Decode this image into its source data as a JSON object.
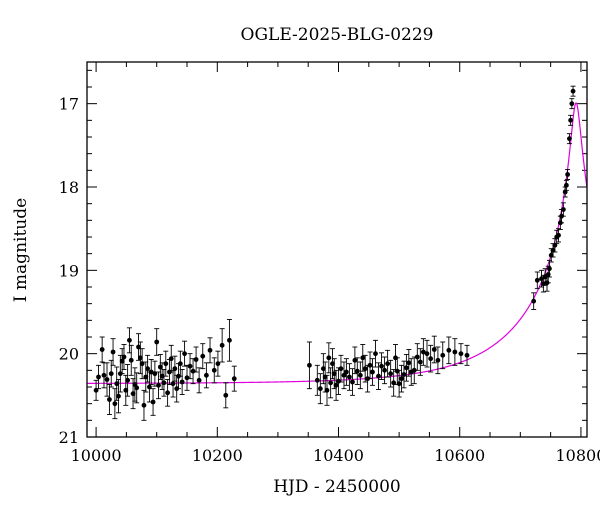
{
  "chart_data": {
    "type": "scatter",
    "title": "OGLE-2025-BLG-0229",
    "xlabel": "HJD - 2450000",
    "ylabel": "I magnitude",
    "xlim": [
      9985,
      10810
    ],
    "ylim": [
      21.0,
      16.5
    ],
    "y_inverted": true,
    "x_ticks": [
      10000,
      10200,
      10400,
      10600,
      10800
    ],
    "y_ticks": [
      17,
      18,
      19,
      20,
      21
    ],
    "grid": false,
    "legend": "none",
    "colors": {
      "data": "#000000",
      "model": "#e000e0"
    },
    "series": [
      {
        "kind": "points_with_errorbars",
        "points": [
          {
            "x": 10000,
            "y": 20.44,
            "e": 0.12
          },
          {
            "x": 10004,
            "y": 20.28,
            "e": 0.14
          },
          {
            "x": 10010,
            "y": 19.95,
            "e": 0.15
          },
          {
            "x": 10013,
            "y": 20.26,
            "e": 0.15
          },
          {
            "x": 10018,
            "y": 20.31,
            "e": 0.2
          },
          {
            "x": 10022,
            "y": 20.55,
            "e": 0.18
          },
          {
            "x": 10025,
            "y": 20.24,
            "e": 0.16
          },
          {
            "x": 10028,
            "y": 19.98,
            "e": 0.16
          },
          {
            "x": 10031,
            "y": 20.6,
            "e": 0.18
          },
          {
            "x": 10034,
            "y": 20.36,
            "e": 0.2
          },
          {
            "x": 10037,
            "y": 20.51,
            "e": 0.2
          },
          {
            "x": 10040,
            "y": 20.24,
            "e": 0.22
          },
          {
            "x": 10043,
            "y": 20.09,
            "e": 0.15
          },
          {
            "x": 10046,
            "y": 20.04,
            "e": 0.15
          },
          {
            "x": 10049,
            "y": 20.44,
            "e": 0.18
          },
          {
            "x": 10052,
            "y": 20.32,
            "e": 0.19
          },
          {
            "x": 10055,
            "y": 19.84,
            "e": 0.15
          },
          {
            "x": 10058,
            "y": 20.08,
            "e": 0.18
          },
          {
            "x": 10061,
            "y": 20.48,
            "e": 0.18
          },
          {
            "x": 10064,
            "y": 20.37,
            "e": 0.2
          },
          {
            "x": 10067,
            "y": 20.41,
            "e": 0.18
          },
          {
            "x": 10070,
            "y": 19.92,
            "e": 0.16
          },
          {
            "x": 10073,
            "y": 20.05,
            "e": 0.19
          },
          {
            "x": 10076,
            "y": 20.12,
            "e": 0.18
          },
          {
            "x": 10079,
            "y": 20.62,
            "e": 0.18
          },
          {
            "x": 10082,
            "y": 20.28,
            "e": 0.18
          },
          {
            "x": 10085,
            "y": 20.18,
            "e": 0.16
          },
          {
            "x": 10088,
            "y": 20.4,
            "e": 0.18
          },
          {
            "x": 10091,
            "y": 20.22,
            "e": 0.15
          },
          {
            "x": 10094,
            "y": 20.58,
            "e": 0.16
          },
          {
            "x": 10097,
            "y": 20.24,
            "e": 0.15
          },
          {
            "x": 10100,
            "y": 19.86,
            "e": 0.16
          },
          {
            "x": 10103,
            "y": 20.38,
            "e": 0.16
          },
          {
            "x": 10106,
            "y": 20.16,
            "e": 0.15
          },
          {
            "x": 10109,
            "y": 20.27,
            "e": 0.16
          },
          {
            "x": 10112,
            "y": 20.35,
            "e": 0.16
          },
          {
            "x": 10115,
            "y": 20.12,
            "e": 0.15
          },
          {
            "x": 10118,
            "y": 20.47,
            "e": 0.16
          },
          {
            "x": 10121,
            "y": 20.22,
            "e": 0.15
          },
          {
            "x": 10124,
            "y": 20.06,
            "e": 0.16
          },
          {
            "x": 10127,
            "y": 20.36,
            "e": 0.16
          },
          {
            "x": 10130,
            "y": 20.18,
            "e": 0.15
          },
          {
            "x": 10133,
            "y": 20.42,
            "e": 0.16
          },
          {
            "x": 10136,
            "y": 20.27,
            "e": 0.15
          },
          {
            "x": 10139,
            "y": 20.12,
            "e": 0.15
          },
          {
            "x": 10142,
            "y": 20.34,
            "e": 0.15
          },
          {
            "x": 10146,
            "y": 20.0,
            "e": 0.15
          },
          {
            "x": 10150,
            "y": 20.29,
            "e": 0.15
          },
          {
            "x": 10155,
            "y": 20.15,
            "e": 0.15
          },
          {
            "x": 10160,
            "y": 20.21,
            "e": 0.15
          },
          {
            "x": 10165,
            "y": 20.07,
            "e": 0.15
          },
          {
            "x": 10170,
            "y": 20.32,
            "e": 0.15
          },
          {
            "x": 10176,
            "y": 20.03,
            "e": 0.15
          },
          {
            "x": 10182,
            "y": 20.26,
            "e": 0.15
          },
          {
            "x": 10188,
            "y": 19.96,
            "e": 0.15
          },
          {
            "x": 10195,
            "y": 20.2,
            "e": 0.15
          },
          {
            "x": 10201,
            "y": 20.12,
            "e": 0.15
          },
          {
            "x": 10208,
            "y": 19.9,
            "e": 0.2
          },
          {
            "x": 10214,
            "y": 20.5,
            "e": 0.15
          },
          {
            "x": 10220,
            "y": 19.84,
            "e": 0.25
          },
          {
            "x": 10228,
            "y": 20.3,
            "e": 0.15
          },
          {
            "x": 10352,
            "y": 20.14,
            "e": 0.28
          },
          {
            "x": 10365,
            "y": 20.32,
            "e": 0.18
          },
          {
            "x": 10370,
            "y": 20.42,
            "e": 0.18
          },
          {
            "x": 10375,
            "y": 20.18,
            "e": 0.18
          },
          {
            "x": 10378,
            "y": 20.28,
            "e": 0.18
          },
          {
            "x": 10381,
            "y": 20.44,
            "e": 0.18
          },
          {
            "x": 10384,
            "y": 20.05,
            "e": 0.18
          },
          {
            "x": 10387,
            "y": 20.35,
            "e": 0.18
          },
          {
            "x": 10390,
            "y": 20.12,
            "e": 0.18
          },
          {
            "x": 10393,
            "y": 20.24,
            "e": 0.18
          },
          {
            "x": 10396,
            "y": 20.38,
            "e": 0.18
          },
          {
            "x": 10400,
            "y": 20.33,
            "e": 0.16
          },
          {
            "x": 10404,
            "y": 20.18,
            "e": 0.16
          },
          {
            "x": 10409,
            "y": 20.26,
            "e": 0.16
          },
          {
            "x": 10413,
            "y": 20.22,
            "e": 0.16
          },
          {
            "x": 10418,
            "y": 20.28,
            "e": 0.16
          },
          {
            "x": 10423,
            "y": 20.34,
            "e": 0.16
          },
          {
            "x": 10427,
            "y": 20.08,
            "e": 0.16
          },
          {
            "x": 10431,
            "y": 20.21,
            "e": 0.16
          },
          {
            "x": 10436,
            "y": 20.26,
            "e": 0.16
          },
          {
            "x": 10440,
            "y": 20.05,
            "e": 0.16
          },
          {
            "x": 10444,
            "y": 20.18,
            "e": 0.16
          },
          {
            "x": 10448,
            "y": 20.3,
            "e": 0.16
          },
          {
            "x": 10452,
            "y": 20.14,
            "e": 0.16
          },
          {
            "x": 10456,
            "y": 20.22,
            "e": 0.16
          },
          {
            "x": 10461,
            "y": 20.0,
            "e": 0.16
          },
          {
            "x": 10466,
            "y": 20.27,
            "e": 0.16
          },
          {
            "x": 10471,
            "y": 20.15,
            "e": 0.16
          },
          {
            "x": 10476,
            "y": 20.2,
            "e": 0.16
          },
          {
            "x": 10481,
            "y": 20.12,
            "e": 0.16
          },
          {
            "x": 10486,
            "y": 20.24,
            "e": 0.16
          },
          {
            "x": 10491,
            "y": 20.35,
            "e": 0.16
          },
          {
            "x": 10494,
            "y": 20.05,
            "e": 0.16
          },
          {
            "x": 10497,
            "y": 20.21,
            "e": 0.16
          },
          {
            "x": 10500,
            "y": 20.36,
            "e": 0.16
          },
          {
            "x": 10504,
            "y": 20.3,
            "e": 0.16
          },
          {
            "x": 10508,
            "y": 20.25,
            "e": 0.16
          },
          {
            "x": 10512,
            "y": 20.17,
            "e": 0.16
          },
          {
            "x": 10516,
            "y": 20.11,
            "e": 0.16
          },
          {
            "x": 10520,
            "y": 20.22,
            "e": 0.16
          },
          {
            "x": 10525,
            "y": 20.2,
            "e": 0.16
          },
          {
            "x": 10530,
            "y": 20.04,
            "e": 0.16
          },
          {
            "x": 10535,
            "y": 20.1,
            "e": 0.16
          },
          {
            "x": 10540,
            "y": 19.98,
            "e": 0.16
          },
          {
            "x": 10546,
            "y": 20.0,
            "e": 0.16
          },
          {
            "x": 10552,
            "y": 20.06,
            "e": 0.16
          },
          {
            "x": 10558,
            "y": 19.95,
            "e": 0.16
          },
          {
            "x": 10564,
            "y": 20.08,
            "e": 0.16
          },
          {
            "x": 10572,
            "y": 20.02,
            "e": 0.16
          },
          {
            "x": 10582,
            "y": 19.96,
            "e": 0.16
          },
          {
            "x": 10592,
            "y": 19.98,
            "e": 0.16
          },
          {
            "x": 10602,
            "y": 20.0,
            "e": 0.12
          },
          {
            "x": 10612,
            "y": 20.02,
            "e": 0.12
          },
          {
            "x": 10722,
            "y": 19.37,
            "e": 0.1
          },
          {
            "x": 10728,
            "y": 19.12,
            "e": 0.1
          },
          {
            "x": 10735,
            "y": 19.1,
            "e": 0.1
          },
          {
            "x": 10738,
            "y": 19.16,
            "e": 0.1
          },
          {
            "x": 10741,
            "y": 19.08,
            "e": 0.1
          },
          {
            "x": 10744,
            "y": 19.15,
            "e": 0.1
          },
          {
            "x": 10746,
            "y": 19.05,
            "e": 0.1
          },
          {
            "x": 10748,
            "y": 18.98,
            "e": 0.1
          },
          {
            "x": 10751,
            "y": 18.82,
            "e": 0.08
          },
          {
            "x": 10754,
            "y": 18.76,
            "e": 0.08
          },
          {
            "x": 10757,
            "y": 18.7,
            "e": 0.08
          },
          {
            "x": 10760,
            "y": 18.6,
            "e": 0.08
          },
          {
            "x": 10763,
            "y": 18.58,
            "e": 0.08
          },
          {
            "x": 10766,
            "y": 18.43,
            "e": 0.08
          },
          {
            "x": 10768,
            "y": 18.35,
            "e": 0.08
          },
          {
            "x": 10771,
            "y": 18.27,
            "e": 0.08
          },
          {
            "x": 10774,
            "y": 18.06,
            "e": 0.06
          },
          {
            "x": 10776,
            "y": 17.98,
            "e": 0.06
          },
          {
            "x": 10778,
            "y": 17.85,
            "e": 0.06
          },
          {
            "x": 10781,
            "y": 17.42,
            "e": 0.06
          },
          {
            "x": 10783,
            "y": 17.2,
            "e": 0.06
          },
          {
            "x": 10785,
            "y": 17.0,
            "e": 0.06
          },
          {
            "x": 10787,
            "y": 16.85,
            "e": 0.06
          }
        ]
      },
      {
        "kind": "model_curve",
        "t0": 10792,
        "tE": 170,
        "u0": 0.045,
        "base_mag": 20.36,
        "x_range": [
          9985,
          10810
        ]
      }
    ]
  }
}
